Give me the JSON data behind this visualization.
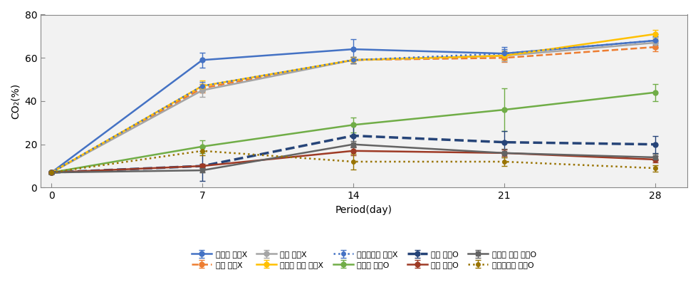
{
  "x": [
    0,
    7,
    14,
    21,
    28
  ],
  "series": [
    {
      "label": "무첨가 가공X",
      "color": "#4472C4",
      "linestyle": "-",
      "marker": "o",
      "linewidth": 1.8,
      "markersize": 5,
      "values": [
        7,
        59,
        64,
        62,
        68
      ],
      "yerr": [
        0.5,
        3.5,
        4.5,
        3.0,
        3.0
      ]
    },
    {
      "label": "왕겨 가공X",
      "color": "#ED7D31",
      "linestyle": "--",
      "marker": "o",
      "linewidth": 1.8,
      "markersize": 5,
      "values": [
        7,
        46,
        59,
        60,
        65
      ],
      "yerr": [
        0.5,
        2.0,
        1.5,
        2.0,
        2.0
      ]
    },
    {
      "label": "증조 가공X",
      "color": "#A5A5A5",
      "linestyle": "-",
      "marker": "o",
      "linewidth": 1.8,
      "markersize": 5,
      "values": [
        7,
        45,
        59,
        61,
        67
      ],
      "yerr": [
        0.5,
        3.0,
        1.5,
        2.5,
        2.5
      ]
    },
    {
      "label": "열처리 증조 가공X",
      "color": "#FFC000",
      "linestyle": "-",
      "marker": "o",
      "linewidth": 1.8,
      "markersize": 5,
      "values": [
        7,
        47,
        59,
        61,
        71
      ],
      "yerr": [
        0.5,
        2.5,
        1.5,
        2.0,
        2.0
      ]
    },
    {
      "label": "베이킹소다 가공X",
      "color": "#4472C4",
      "linestyle": ":",
      "marker": "o",
      "linewidth": 1.8,
      "markersize": 4,
      "values": [
        7,
        47,
        59,
        62,
        68
      ],
      "yerr": [
        0.5,
        2.0,
        1.5,
        2.0,
        2.0
      ]
    },
    {
      "label": "무첨가 가공O",
      "color": "#70AD47",
      "linestyle": "-",
      "marker": "o",
      "linewidth": 1.8,
      "markersize": 5,
      "values": [
        7,
        19,
        29,
        36,
        44
      ],
      "yerr": [
        0.5,
        3.0,
        3.5,
        10.0,
        4.0
      ]
    },
    {
      "label": "왕겨 가공O",
      "color": "#264478",
      "linestyle": "--",
      "marker": "o",
      "linewidth": 2.5,
      "markersize": 5,
      "values": [
        7,
        10,
        24,
        21,
        20
      ],
      "yerr": [
        0.5,
        7.0,
        5.0,
        5.0,
        4.0
      ]
    },
    {
      "label": "증조 가공O",
      "color": "#9E3A25",
      "linestyle": "-",
      "marker": "o",
      "linewidth": 1.8,
      "markersize": 5,
      "values": [
        7,
        10,
        17,
        16,
        13
      ],
      "yerr": [
        0.5,
        1.0,
        2.0,
        1.5,
        1.5
      ]
    },
    {
      "label": "열처리 증조 가공O",
      "color": "#636363",
      "linestyle": "-",
      "marker": "s",
      "linewidth": 1.8,
      "markersize": 5,
      "values": [
        7,
        8,
        20,
        16,
        14
      ],
      "yerr": [
        0.5,
        1.0,
        1.5,
        2.0,
        1.5
      ]
    },
    {
      "label": "베이킹소다 가공O",
      "color": "#997300",
      "linestyle": ":",
      "marker": "o",
      "linewidth": 1.8,
      "markersize": 4,
      "values": [
        7,
        17,
        12,
        12,
        9
      ],
      "yerr": [
        0.5,
        2.0,
        3.5,
        2.0,
        1.5
      ]
    }
  ],
  "xlabel": "Period(day)",
  "ylabel": "CO₂(%)",
  "xlim": [
    -0.5,
    29.5
  ],
  "ylim": [
    0,
    80
  ],
  "yticks": [
    0,
    20,
    40,
    60,
    80
  ],
  "xticks": [
    0,
    7,
    14,
    21,
    28
  ],
  "figsize": [
    9.8,
    4.24
  ],
  "dpi": 100,
  "bg_color": "#F2F2F2"
}
